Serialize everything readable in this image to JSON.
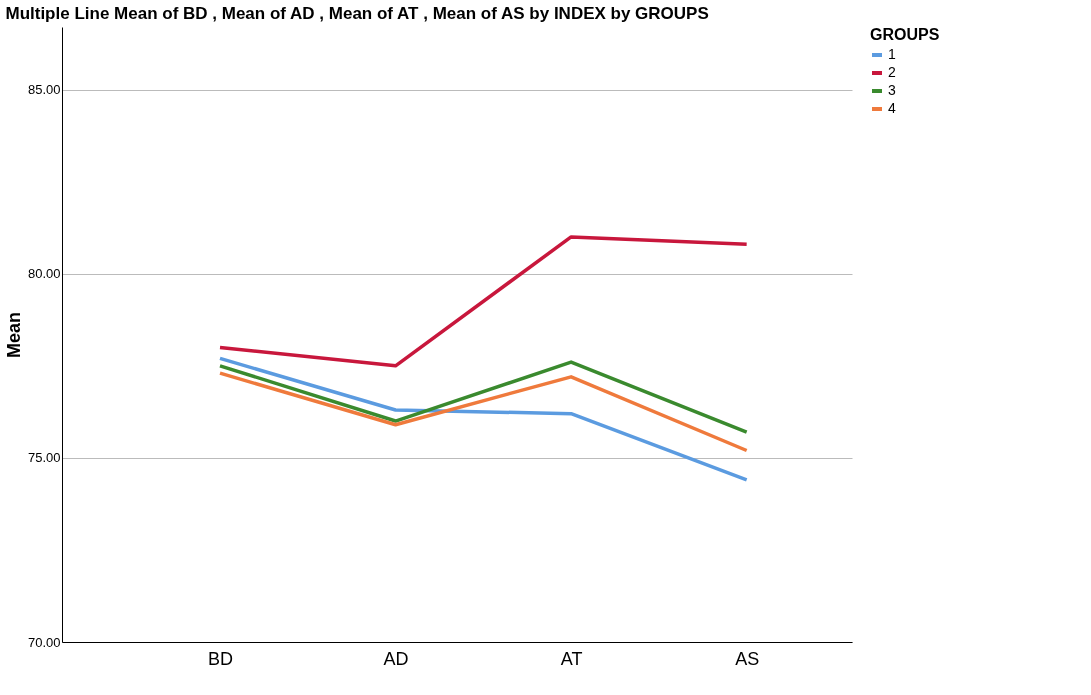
{
  "chart_data": {
    "type": "line",
    "title": "Multiple Line Mean of BD   , Mean of AD   , Mean of AT   , Mean of AS     by INDEX by GROUPS",
    "ylabel": "Mean",
    "legend_title": "GROUPS",
    "categories": [
      "BD",
      "AD",
      "AT",
      "AS"
    ],
    "series": [
      {
        "name": "1",
        "color": "#5b9be0",
        "values": [
          77.7,
          76.3,
          76.2,
          74.4
        ]
      },
      {
        "name": "2",
        "color": "#c8173c",
        "values": [
          78.0,
          77.5,
          81.0,
          80.8
        ]
      },
      {
        "name": "3",
        "color": "#3a8a2e",
        "values": [
          77.5,
          76.0,
          77.6,
          75.7
        ]
      },
      {
        "name": "4",
        "color": "#ef7a3c",
        "values": [
          77.3,
          75.9,
          77.2,
          75.2
        ]
      }
    ],
    "ylim": [
      70,
      86.7
    ],
    "yticks": [
      {
        "value": 70,
        "label": "70.00"
      },
      {
        "value": 75,
        "label": "75.00"
      },
      {
        "value": 80,
        "label": "80.00"
      },
      {
        "value": 85,
        "label": "85.00"
      }
    ],
    "grid": "y",
    "legend": "top right",
    "marker": "none",
    "line_style": "solid"
  }
}
